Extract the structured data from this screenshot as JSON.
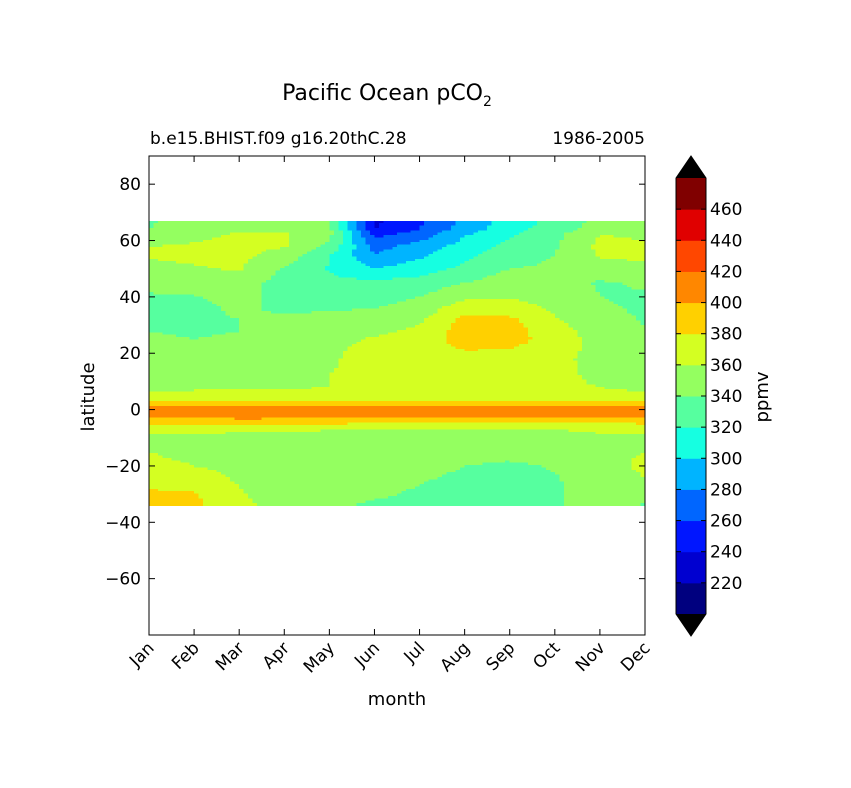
{
  "chart_data": {
    "type": "contourf",
    "title_main": "Pacific Ocean pCO",
    "title_sub": "2",
    "left_subtitle": "b.e15.BHIST.f09 g16.20thC.28",
    "right_subtitle": "1986-2005",
    "xlabel": "month",
    "ylabel": "latitude",
    "colorbar_label": "ppmv",
    "x_categories": [
      "Jan",
      "Feb",
      "Mar",
      "Apr",
      "May",
      "Jun",
      "Jul",
      "Aug",
      "Sep",
      "Oct",
      "Nov",
      "Dec"
    ],
    "xlim": [
      0,
      11
    ],
    "ylim": [
      -80,
      90
    ],
    "yticks": [
      80,
      60,
      40,
      20,
      0,
      -20,
      -40,
      -60
    ],
    "ytick_labels": [
      "80",
      "60",
      "40",
      "20",
      "0",
      "−20",
      "−40",
      "−60"
    ],
    "data_lat_range": [
      -34,
      67
    ],
    "levels": [
      200,
      220,
      240,
      260,
      280,
      300,
      320,
      340,
      360,
      380,
      400,
      420,
      440,
      460,
      480
    ],
    "level_colors": [
      "#00007f",
      "#0000d0",
      "#0016ff",
      "#0066ff",
      "#00b4ff",
      "#16ffe1",
      "#56ff9f",
      "#94ff60",
      "#d4ff22",
      "#ffd000",
      "#ff8700",
      "#ff4700",
      "#e00000",
      "#800000"
    ],
    "extend_low_color": "#000000",
    "extend_high_color": "#000000",
    "colorbar_tick_labels": [
      "220",
      "240",
      "260",
      "280",
      "300",
      "320",
      "340",
      "360",
      "380",
      "400",
      "420",
      "440",
      "460"
    ],
    "value_lat_grid": [
      -34,
      -30,
      -25,
      -20,
      -15,
      -10,
      -7,
      -5,
      -3,
      -1,
      1,
      3,
      5,
      8,
      12,
      18,
      22,
      25,
      28,
      32,
      36,
      40,
      45,
      50,
      55,
      58,
      62,
      64,
      67
    ],
    "values_by_month": [
      [
        388,
        385,
        370,
        362,
        360,
        358,
        365,
        380,
        400,
        415,
        405,
        382,
        362,
        358,
        352,
        345,
        342,
        341,
        340,
        339,
        338,
        338,
        345,
        355,
        362,
        360,
        345,
        340,
        338
      ],
      [
        385,
        382,
        368,
        360,
        358,
        357,
        365,
        382,
        402,
        417,
        405,
        383,
        363,
        358,
        351,
        344,
        341,
        340,
        339,
        338,
        337,
        339,
        348,
        358,
        365,
        362,
        356,
        350,
        345
      ],
      [
        365,
        362,
        358,
        356,
        355,
        355,
        363,
        382,
        403,
        419,
        406,
        384,
        364,
        359,
        352,
        345,
        342,
        341,
        340,
        340,
        342,
        345,
        352,
        362,
        365,
        365,
        362,
        358,
        352
      ],
      [
        352,
        350,
        352,
        354,
        355,
        354,
        362,
        381,
        403,
        420,
        406,
        384,
        364,
        359,
        355,
        350,
        348,
        348,
        345,
        342,
        338,
        335,
        330,
        338,
        352,
        362,
        362,
        358,
        352
      ],
      [
        342,
        344,
        348,
        352,
        355,
        354,
        361,
        380,
        402,
        420,
        405,
        383,
        363,
        360,
        360,
        358,
        356,
        354,
        350,
        345,
        338,
        332,
        325,
        318,
        322,
        335,
        345,
        345,
        342
      ],
      [
        338,
        342,
        346,
        350,
        354,
        354,
        361,
        379,
        401,
        419,
        404,
        382,
        362,
        362,
        365,
        366,
        366,
        362,
        355,
        348,
        340,
        332,
        325,
        300,
        280,
        272,
        255,
        240,
        235
      ],
      [
        336,
        338,
        341,
        345,
        352,
        354,
        360,
        378,
        400,
        418,
        403,
        381,
        362,
        364,
        368,
        370,
        372,
        370,
        364,
        356,
        348,
        340,
        328,
        310,
        296,
        288,
        270,
        260,
        255
      ],
      [
        334,
        335,
        337,
        340,
        350,
        354,
        360,
        377,
        399,
        417,
        402,
        380,
        362,
        366,
        370,
        374,
        382,
        388,
        390,
        385,
        372,
        355,
        340,
        325,
        315,
        308,
        298,
        290,
        285
      ],
      [
        334,
        334,
        335,
        336,
        348,
        354,
        359,
        376,
        398,
        416,
        401,
        379,
        362,
        366,
        370,
        374,
        381,
        387,
        388,
        384,
        370,
        358,
        350,
        340,
        330,
        325,
        318,
        312,
        308
      ],
      [
        336,
        336,
        338,
        342,
        352,
        356,
        360,
        376,
        398,
        416,
        401,
        379,
        361,
        364,
        366,
        368,
        372,
        372,
        368,
        362,
        356,
        352,
        348,
        343,
        340,
        338,
        335,
        330,
        326
      ],
      [
        358,
        355,
        352,
        356,
        358,
        358,
        362,
        378,
        400,
        417,
        403,
        380,
        362,
        360,
        355,
        350,
        352,
        352,
        350,
        345,
        342,
        340,
        338,
        352,
        362,
        365,
        360,
        350,
        345
      ],
      [
        338,
        345,
        360,
        362,
        360,
        358,
        364,
        380,
        401,
        417,
        405,
        381,
        362,
        358,
        354,
        348,
        344,
        342,
        340,
        339,
        338,
        338,
        342,
        355,
        365,
        362,
        358,
        345,
        340
      ]
    ]
  }
}
